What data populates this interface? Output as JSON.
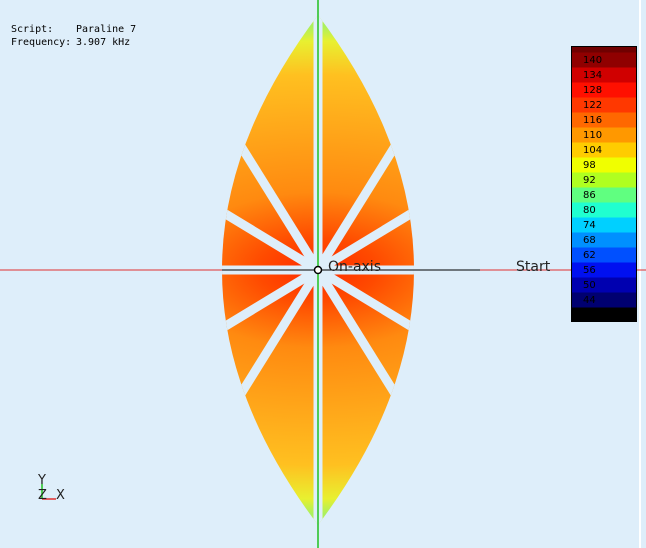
{
  "header": {
    "script_label": "Script:",
    "script_value": "Paraline 7",
    "frequency_label": "Frequency:",
    "frequency_value": "3.907 kHz"
  },
  "colorbar": {
    "labels": [
      140,
      134,
      128,
      122,
      116,
      110,
      104,
      98,
      92,
      86,
      80,
      74,
      68,
      62,
      56,
      50,
      44
    ]
  },
  "markers": {
    "on_axis": "On-axis",
    "start": "Start"
  },
  "axes": {
    "y": "Y",
    "z": "Z",
    "x": "X"
  }
}
